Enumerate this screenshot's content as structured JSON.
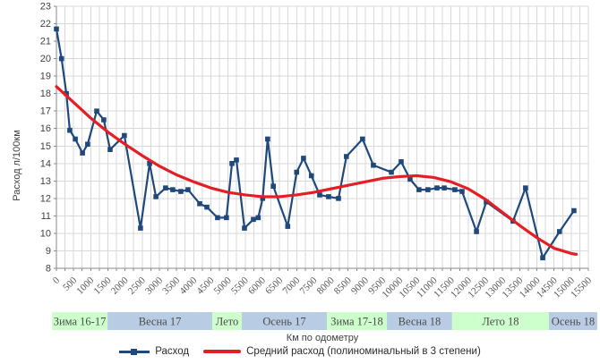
{
  "chart_data": {
    "type": "line",
    "title": "",
    "xlabel": "Км по одометру",
    "ylabel": "Расход л/100км",
    "xlim": [
      0,
      15500
    ],
    "x_tick_step": 500,
    "x_grid_step": 250,
    "ylim": [
      8,
      23
    ],
    "y_tick_step": 1,
    "grid": true,
    "legend_position": "bottom",
    "series": [
      {
        "name": "Расход",
        "style": "line_with_square_markers",
        "color": "#1f497d",
        "points": [
          [
            0,
            21.7
          ],
          [
            150,
            20.0
          ],
          [
            290,
            18.0
          ],
          [
            390,
            15.9
          ],
          [
            550,
            15.4
          ],
          [
            760,
            14.6
          ],
          [
            910,
            15.1
          ],
          [
            1175,
            17.0
          ],
          [
            1380,
            16.5
          ],
          [
            1565,
            14.8
          ],
          [
            1980,
            15.6
          ],
          [
            2450,
            10.3
          ],
          [
            2715,
            14.0
          ],
          [
            2900,
            12.1
          ],
          [
            3180,
            12.6
          ],
          [
            3390,
            12.5
          ],
          [
            3625,
            12.4
          ],
          [
            3835,
            12.5
          ],
          [
            4175,
            11.7
          ],
          [
            4385,
            11.5
          ],
          [
            4695,
            10.9
          ],
          [
            4955,
            10.9
          ],
          [
            5115,
            14.0
          ],
          [
            5245,
            14.2
          ],
          [
            5480,
            10.3
          ],
          [
            5740,
            10.8
          ],
          [
            5880,
            10.9
          ],
          [
            6010,
            12.0
          ],
          [
            6155,
            15.4
          ],
          [
            6320,
            12.7
          ],
          [
            6740,
            10.4
          ],
          [
            7000,
            13.5
          ],
          [
            7200,
            14.3
          ],
          [
            7430,
            13.3
          ],
          [
            7670,
            12.2
          ],
          [
            7930,
            12.1
          ],
          [
            8220,
            12.0
          ],
          [
            8450,
            14.4
          ],
          [
            8920,
            15.4
          ],
          [
            9235,
            13.9
          ],
          [
            9760,
            13.5
          ],
          [
            10045,
            14.1
          ],
          [
            10305,
            13.1
          ],
          [
            10565,
            12.5
          ],
          [
            10825,
            12.5
          ],
          [
            11090,
            12.6
          ],
          [
            11300,
            12.6
          ],
          [
            11610,
            12.5
          ],
          [
            11820,
            12.4
          ],
          [
            12240,
            10.1
          ],
          [
            12525,
            11.8
          ],
          [
            13305,
            10.7
          ],
          [
            13670,
            12.6
          ],
          [
            14170,
            8.6
          ],
          [
            14660,
            10.1
          ],
          [
            15080,
            11.3
          ]
        ]
      },
      {
        "name": "Средний расход (полиноминальный в 3 степени)",
        "style": "smooth_trend_line",
        "color": "#e31e24",
        "points": [
          [
            0,
            18.4
          ],
          [
            500,
            17.5
          ],
          [
            1000,
            16.6
          ],
          [
            1500,
            15.8
          ],
          [
            2000,
            15.1
          ],
          [
            2500,
            14.45
          ],
          [
            3000,
            13.85
          ],
          [
            3500,
            13.35
          ],
          [
            4000,
            12.95
          ],
          [
            4500,
            12.6
          ],
          [
            5000,
            12.35
          ],
          [
            5500,
            12.2
          ],
          [
            6000,
            12.1
          ],
          [
            6500,
            12.1
          ],
          [
            7000,
            12.2
          ],
          [
            7500,
            12.35
          ],
          [
            8000,
            12.55
          ],
          [
            8500,
            12.75
          ],
          [
            9000,
            12.95
          ],
          [
            9500,
            13.15
          ],
          [
            10000,
            13.25
          ],
          [
            10500,
            13.3
          ],
          [
            11000,
            13.2
          ],
          [
            11500,
            12.95
          ],
          [
            12000,
            12.55
          ],
          [
            12500,
            11.95
          ],
          [
            13000,
            11.2
          ],
          [
            13500,
            10.45
          ],
          [
            14000,
            9.75
          ],
          [
            14500,
            9.15
          ],
          [
            15000,
            8.85
          ],
          [
            15150,
            8.8
          ]
        ]
      }
    ],
    "season_bands": [
      {
        "label": "Зима 16-17",
        "color": "#ccffcc",
        "from_km": -130,
        "to_km": 1490
      },
      {
        "label": "Весна 17",
        "color": "#b8cce4",
        "from_km": 1490,
        "to_km": 4540
      },
      {
        "label": "Лето",
        "color": "#ccffcc",
        "from_km": 4540,
        "to_km": 5400
      },
      {
        "label": "Осень 17",
        "color": "#b8cce4",
        "from_km": 5400,
        "to_km": 7880
      },
      {
        "label": "Зима 17-18",
        "color": "#ccffcc",
        "from_km": 7880,
        "to_km": 9630
      },
      {
        "label": "Весна 18",
        "color": "#b8cce4",
        "from_km": 9630,
        "to_km": 11530
      },
      {
        "label": "Лето 18",
        "color": "#ccffcc",
        "from_km": 11530,
        "to_km": 14350
      },
      {
        "label": "Осень 18",
        "color": "#b8cce4",
        "from_km": 14350,
        "to_km": 15760
      }
    ]
  },
  "colors": {
    "grid": "#d9d9d9",
    "axis": "#898989",
    "background": "#ffffff"
  }
}
